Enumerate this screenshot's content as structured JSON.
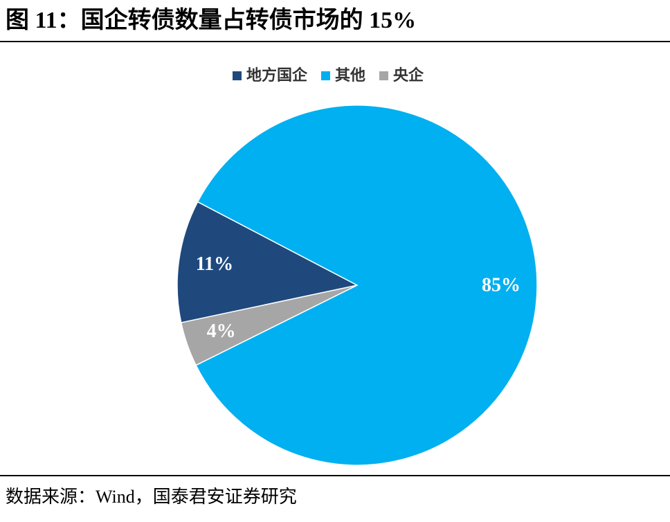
{
  "chart_data": {
    "type": "pie",
    "title": "图 11：国企转债数量占转债市场的 15%",
    "categories": [
      "地方国企",
      "其他",
      "央企"
    ],
    "values": [
      11,
      85,
      4
    ],
    "value_labels": [
      "11%",
      "85%",
      "4%"
    ],
    "colors": [
      "#1f497d",
      "#00b0f0",
      "#a6a6a6"
    ],
    "legend": "top",
    "source": "数据来源：Wind，国泰君安证券研究"
  }
}
